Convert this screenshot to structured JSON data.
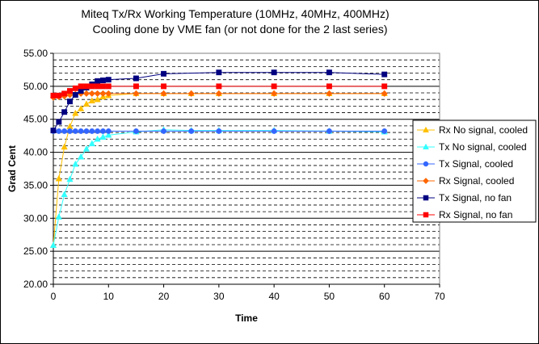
{
  "chart_data": {
    "type": "line",
    "title": "Miteq Tx/Rx Working Temperature (10MHz, 40MHz, 400MHz)",
    "subtitle": "Cooling done by VME fan (or not done for the 2 last series)",
    "xlabel": "Time",
    "ylabel": "Grad Cent",
    "xlim": [
      0,
      70
    ],
    "ylim": [
      20,
      55
    ],
    "x_ticks": [
      0,
      10,
      20,
      30,
      40,
      50,
      60,
      70
    ],
    "y_ticks": [
      "20.00",
      "25.00",
      "30.00",
      "35.00",
      "40.00",
      "45.00",
      "50.00",
      "55.00"
    ],
    "grid": "horizontal dashed minor lines every 1.0, solid major lines every 5.0",
    "legend_position": "right",
    "series": [
      {
        "name": "Rx No signal, cooled",
        "color": "#ffc000",
        "marker": "triangle",
        "x": [
          0,
          1,
          2,
          3,
          4,
          5,
          6,
          7,
          8,
          9,
          10,
          15,
          20,
          25,
          30,
          40,
          50,
          60
        ],
        "y": [
          25.9,
          36.0,
          40.8,
          43.9,
          45.9,
          46.6,
          47.3,
          47.8,
          48.0,
          48.4,
          48.6,
          48.9,
          48.9,
          48.9,
          48.9,
          48.9,
          48.9,
          48.9
        ]
      },
      {
        "name": "Tx No signal, cooled",
        "color": "#33ffff",
        "marker": "triangle",
        "x": [
          0,
          1,
          2,
          3,
          4,
          5,
          6,
          7,
          8,
          9,
          10,
          15,
          20,
          25,
          30,
          40,
          50,
          60
        ],
        "y": [
          25.9,
          30.2,
          33.6,
          35.9,
          38.2,
          39.3,
          40.5,
          41.3,
          42.0,
          42.3,
          42.6,
          43.1,
          43.4,
          43.3,
          43.3,
          43.3,
          43.2,
          43.1
        ]
      },
      {
        "name": "Tx Signal, cooled",
        "color": "#3366ff",
        "marker": "circle",
        "x": [
          0,
          1,
          2,
          3,
          4,
          5,
          6,
          7,
          8,
          9,
          10,
          15,
          20,
          25,
          30,
          40,
          50,
          60
        ],
        "y": [
          43.2,
          43.2,
          43.2,
          43.2,
          43.2,
          43.2,
          43.2,
          43.2,
          43.2,
          43.2,
          43.2,
          43.2,
          43.2,
          43.2,
          43.2,
          43.2,
          43.2,
          43.2
        ]
      },
      {
        "name": "Rx Signal, cooled",
        "color": "#ff6600",
        "marker": "diamond",
        "x": [
          0,
          1,
          2,
          3,
          4,
          5,
          6,
          7,
          8,
          9,
          10,
          15,
          20,
          25,
          30,
          40,
          50,
          60
        ],
        "y": [
          48.3,
          48.4,
          48.5,
          48.7,
          48.8,
          48.9,
          48.9,
          48.9,
          48.9,
          48.9,
          48.9,
          48.9,
          48.9,
          48.9,
          48.9,
          48.9,
          48.9,
          48.9
        ]
      },
      {
        "name": "Tx Signal, no fan",
        "color": "#000080",
        "marker": "square",
        "x": [
          0,
          1,
          2,
          3,
          4,
          5,
          6,
          7,
          8,
          9,
          10,
          15,
          20,
          30,
          40,
          50,
          60
        ],
        "y": [
          43.3,
          44.6,
          46.1,
          47.7,
          48.7,
          49.3,
          49.8,
          50.3,
          50.8,
          50.9,
          51.0,
          51.2,
          51.9,
          52.1,
          52.1,
          52.1,
          51.8
        ]
      },
      {
        "name": "Rx Signal, no fan",
        "color": "#ff0000",
        "marker": "square",
        "x": [
          0,
          1,
          2,
          3,
          4,
          5,
          6,
          7,
          8,
          9,
          10,
          15,
          20,
          30,
          40,
          50,
          60
        ],
        "y": [
          48.6,
          48.6,
          48.9,
          49.3,
          49.7,
          50.0,
          50.0,
          50.0,
          50.0,
          50.0,
          50.0,
          50.0,
          50.0,
          50.0,
          50.0,
          50.0,
          50.0
        ]
      }
    ]
  }
}
